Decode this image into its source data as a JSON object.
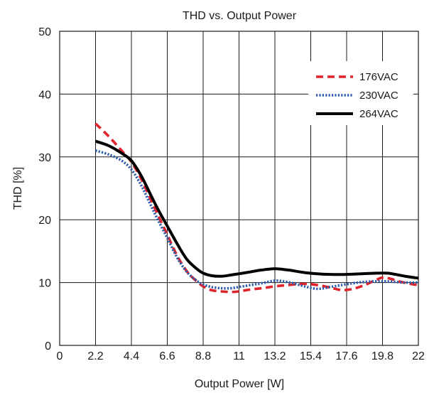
{
  "chart_data": {
    "type": "line",
    "title": "THD vs. Output Power",
    "xlabel": "Output Power [W]",
    "ylabel": "THD [%]",
    "xlim": [
      0,
      22
    ],
    "ylim": [
      0,
      50
    ],
    "x_ticks": [
      "0",
      "2.2",
      "4.4",
      "6.6",
      "8.8",
      "11",
      "13.2",
      "15.4",
      "17.6",
      "19.8",
      "22"
    ],
    "y_ticks": [
      "0",
      "10",
      "20",
      "30",
      "40",
      "50"
    ],
    "grid": true,
    "legend_position": "top-right",
    "series": [
      {
        "name": "176VAC",
        "color": "#e0242c",
        "style": "dashed",
        "x": [
          2.2,
          3.0,
          3.8,
          4.4,
          5.0,
          5.5,
          6.0,
          6.6,
          7.2,
          7.8,
          8.4,
          8.8,
          9.3,
          9.9,
          10.5,
          11.0,
          11.7,
          12.4,
          13.2,
          14.0,
          15.0,
          15.8,
          16.6,
          17.3,
          18.0,
          18.7,
          19.4,
          19.8,
          20.3,
          20.8,
          21.3,
          21.7,
          22.0
        ],
        "y": [
          35.3,
          33.3,
          31.0,
          29.2,
          26.5,
          23.7,
          20.9,
          17.6,
          14.3,
          11.8,
          10.2,
          9.4,
          8.8,
          8.6,
          8.5,
          8.6,
          8.9,
          9.1,
          9.4,
          9.6,
          9.8,
          9.6,
          9.2,
          8.8,
          9.0,
          9.6,
          10.4,
          10.8,
          10.6,
          10.2,
          9.9,
          9.7,
          9.6
        ]
      },
      {
        "name": "230VAC",
        "color": "#2a5aa8",
        "style": "dotted",
        "x": [
          2.2,
          3.0,
          3.8,
          4.4,
          5.0,
          5.5,
          6.0,
          6.6,
          7.2,
          7.8,
          8.4,
          8.8,
          9.3,
          9.9,
          10.5,
          11.0,
          11.7,
          12.4,
          13.2,
          13.7,
          14.3,
          15.0,
          15.8,
          16.6,
          17.3,
          18.0,
          18.7,
          19.4,
          20.0,
          20.6,
          21.2,
          22.0
        ],
        "y": [
          31.0,
          30.4,
          29.4,
          28.0,
          25.5,
          22.8,
          20.1,
          17.1,
          14.0,
          11.7,
          10.3,
          9.7,
          9.3,
          9.1,
          9.1,
          9.3,
          9.6,
          9.9,
          10.3,
          10.2,
          9.9,
          9.4,
          9.0,
          9.3,
          9.6,
          9.9,
          10.1,
          10.2,
          10.2,
          10.1,
          10.0,
          10.0
        ]
      },
      {
        "name": "264VAC",
        "color": "#000000",
        "style": "solid",
        "x": [
          2.2,
          3.0,
          3.8,
          4.4,
          5.0,
          5.5,
          6.0,
          6.6,
          7.2,
          7.8,
          8.4,
          8.8,
          9.3,
          9.9,
          10.5,
          11.0,
          11.7,
          12.4,
          13.2,
          14.0,
          15.0,
          15.8,
          16.6,
          17.6,
          18.5,
          19.4,
          20.1,
          20.6,
          21.2,
          22.0
        ],
        "y": [
          32.5,
          31.8,
          30.6,
          29.4,
          27.0,
          24.4,
          21.8,
          19.0,
          16.2,
          13.7,
          12.2,
          11.5,
          11.1,
          11.0,
          11.2,
          11.4,
          11.7,
          12.0,
          12.2,
          12.0,
          11.6,
          11.4,
          11.3,
          11.3,
          11.4,
          11.5,
          11.5,
          11.3,
          11.0,
          10.7
        ]
      }
    ]
  }
}
